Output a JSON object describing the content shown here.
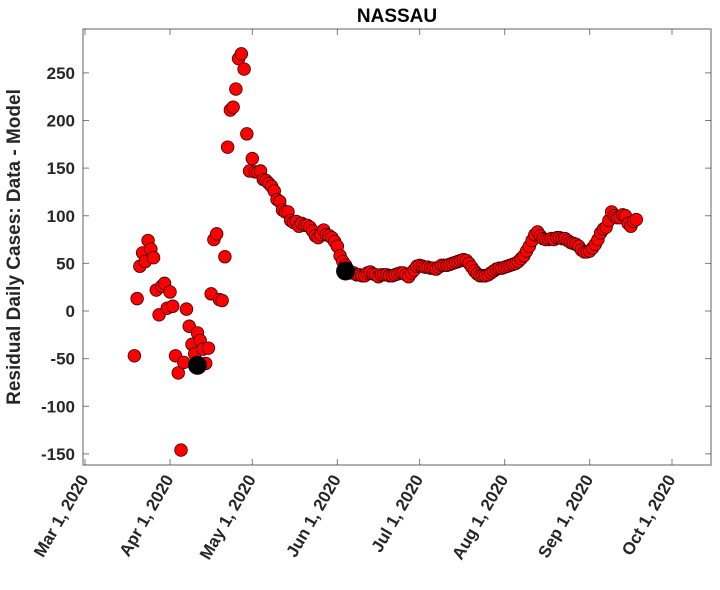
{
  "chart_data": {
    "type": "scatter",
    "title": "NASSAU",
    "xlabel": "",
    "ylabel": "Residual Daily Cases: Data - Model",
    "ylim": [
      -160,
      290
    ],
    "yticks": [
      -150,
      -100,
      -50,
      0,
      50,
      100,
      150,
      200,
      250
    ],
    "xtick_labels": [
      "Mar 1, 2020",
      "Apr 1, 2020",
      "May 1, 2020",
      "Jun 1, 2020",
      "Jul 1, 2020",
      "Aug 1, 2020",
      "Sep 1, 2020",
      "Oct 1, 2020"
    ],
    "xtick_days": [
      0,
      31,
      61,
      92,
      122,
      153,
      184,
      214
    ],
    "xlim_days": [
      -1,
      229
    ],
    "grid": false,
    "legend": null,
    "marker_color": "#ff0000",
    "marker_edge": "#3a0000",
    "highlight_color": "#000000",
    "x_unit": "days since Mar 1, 2020",
    "series": [
      {
        "name": "residuals",
        "points": [
          [
            18,
            -47
          ],
          [
            19,
            13
          ],
          [
            20,
            47
          ],
          [
            21,
            61
          ],
          [
            22,
            52
          ],
          [
            23,
            74
          ],
          [
            24,
            65
          ],
          [
            25,
            56
          ],
          [
            26,
            22
          ],
          [
            27,
            -4
          ],
          [
            28,
            26
          ],
          [
            29,
            29
          ],
          [
            30,
            3
          ],
          [
            31,
            20
          ],
          [
            32,
            5
          ],
          [
            33,
            -47
          ],
          [
            34,
            -65
          ],
          [
            35,
            -146
          ],
          [
            36,
            -54
          ],
          [
            37,
            2
          ],
          [
            38,
            -16
          ],
          [
            39,
            -35
          ],
          [
            40,
            -45
          ],
          [
            41,
            -23
          ],
          [
            42,
            -31
          ],
          [
            43,
            -40
          ],
          [
            44,
            -55
          ],
          [
            45,
            -39
          ],
          [
            46,
            18
          ],
          [
            47,
            75
          ],
          [
            48,
            81
          ],
          [
            49,
            12
          ],
          [
            50,
            11
          ],
          [
            51,
            57
          ],
          [
            52,
            172
          ],
          [
            53,
            211
          ],
          [
            54,
            214
          ],
          [
            55,
            233
          ],
          [
            56,
            265
          ],
          [
            57,
            270
          ],
          [
            58,
            254
          ],
          [
            59,
            186
          ],
          [
            60,
            147
          ],
          [
            61,
            160
          ],
          [
            62,
            146
          ],
          [
            63,
            146
          ],
          [
            64,
            147
          ],
          [
            65,
            138
          ],
          [
            66,
            137
          ],
          [
            67,
            134
          ],
          [
            68,
            131
          ],
          [
            69,
            126
          ],
          [
            70,
            117
          ],
          [
            71,
            115
          ],
          [
            72,
            106
          ],
          [
            73,
            104
          ],
          [
            74,
            104
          ],
          [
            75,
            95
          ],
          [
            76,
            93
          ],
          [
            77,
            94
          ],
          [
            78,
            89
          ],
          [
            79,
            92
          ],
          [
            80,
            90
          ],
          [
            81,
            90
          ],
          [
            82,
            88
          ],
          [
            83,
            84
          ],
          [
            84,
            79
          ],
          [
            85,
            77
          ],
          [
            86,
            80
          ],
          [
            87,
            85
          ],
          [
            88,
            80
          ],
          [
            89,
            79
          ],
          [
            90,
            77
          ],
          [
            91,
            73
          ],
          [
            92,
            68
          ],
          [
            93,
            58
          ],
          [
            94,
            52
          ],
          [
            95,
            48
          ]
        ]
      },
      {
        "name": "residuals_late",
        "points": [
          [
            97,
            40
          ],
          [
            98,
            40
          ],
          [
            99,
            38
          ],
          [
            100,
            38
          ],
          [
            101,
            37
          ],
          [
            102,
            37
          ],
          [
            103,
            40
          ],
          [
            104,
            41
          ],
          [
            105,
            39
          ],
          [
            106,
            38
          ],
          [
            107,
            36
          ],
          [
            108,
            38
          ],
          [
            109,
            38
          ],
          [
            110,
            38
          ],
          [
            111,
            37
          ],
          [
            112,
            37
          ],
          [
            113,
            38
          ],
          [
            114,
            39
          ],
          [
            115,
            40
          ],
          [
            116,
            40
          ],
          [
            117,
            38
          ],
          [
            118,
            36
          ],
          [
            119,
            40
          ],
          [
            120,
            43
          ],
          [
            121,
            47
          ],
          [
            122,
            48
          ],
          [
            123,
            47
          ],
          [
            124,
            46
          ],
          [
            125,
            46
          ],
          [
            126,
            45
          ],
          [
            127,
            45
          ],
          [
            128,
            44
          ],
          [
            129,
            46
          ],
          [
            130,
            48
          ],
          [
            131,
            48
          ],
          [
            132,
            48
          ],
          [
            133,
            49
          ],
          [
            134,
            50
          ],
          [
            135,
            51
          ],
          [
            136,
            52
          ],
          [
            137,
            53
          ],
          [
            138,
            54
          ],
          [
            139,
            53
          ],
          [
            140,
            50
          ],
          [
            141,
            46
          ],
          [
            142,
            42
          ],
          [
            143,
            39
          ],
          [
            144,
            37
          ],
          [
            145,
            37
          ],
          [
            146,
            37
          ],
          [
            147,
            38
          ],
          [
            148,
            40
          ],
          [
            149,
            42
          ],
          [
            150,
            44
          ],
          [
            151,
            45
          ],
          [
            152,
            45
          ],
          [
            153,
            46
          ],
          [
            154,
            47
          ],
          [
            155,
            48
          ],
          [
            156,
            49
          ],
          [
            157,
            50
          ],
          [
            158,
            52
          ],
          [
            159,
            55
          ],
          [
            160,
            58
          ],
          [
            161,
            63
          ],
          [
            162,
            68
          ],
          [
            163,
            74
          ],
          [
            164,
            80
          ],
          [
            165,
            83
          ],
          [
            166,
            79
          ],
          [
            167,
            76
          ],
          [
            168,
            75
          ],
          [
            169,
            75
          ],
          [
            170,
            76
          ],
          [
            171,
            75
          ],
          [
            172,
            77
          ],
          [
            173,
            77
          ],
          [
            174,
            76
          ],
          [
            175,
            76
          ],
          [
            176,
            74
          ],
          [
            177,
            72
          ],
          [
            178,
            71
          ],
          [
            179,
            70
          ],
          [
            180,
            68
          ],
          [
            181,
            64
          ],
          [
            182,
            62
          ],
          [
            183,
            62
          ],
          [
            184,
            63
          ],
          [
            185,
            66
          ],
          [
            186,
            70
          ],
          [
            187,
            75
          ],
          [
            188,
            82
          ],
          [
            189,
            86
          ],
          [
            190,
            88
          ],
          [
            191,
            95
          ],
          [
            192,
            104
          ],
          [
            193,
            100
          ],
          [
            194,
            98
          ],
          [
            195,
            98
          ],
          [
            196,
            101
          ],
          [
            197,
            100
          ],
          [
            198,
            92
          ],
          [
            199,
            89
          ],
          [
            200,
            94
          ],
          [
            201,
            96
          ]
        ]
      }
    ],
    "highlight_points": [
      [
        41,
        -57
      ],
      [
        95,
        42
      ]
    ]
  }
}
